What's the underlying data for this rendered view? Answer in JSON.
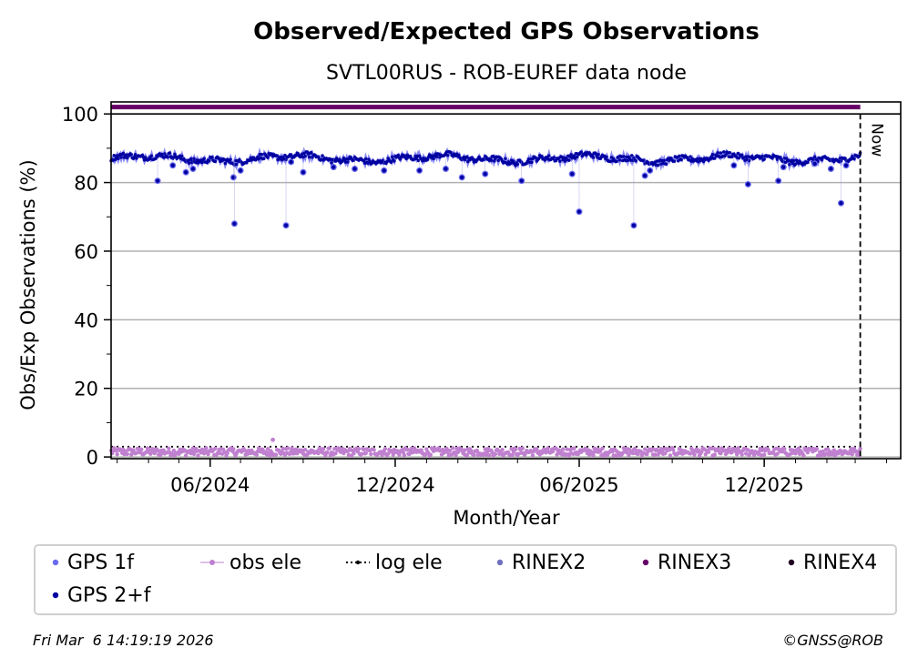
{
  "chart_data": {
    "type": "scatter",
    "title": "Observed/Expected GPS Observations",
    "subtitle": "SVTL00RUS - ROB-EUREF data node",
    "xlabel": "Month/Year",
    "ylabel": "Obs/Exp Observations (%)",
    "xlim": [
      "2024-02-24",
      "2026-04-15"
    ],
    "ylim": [
      -0.5,
      103.5
    ],
    "x_ticks": [
      {
        "date": "2024-06-01",
        "label": "06/2024"
      },
      {
        "date": "2024-12-01",
        "label": "12/2024"
      },
      {
        "date": "2025-06-01",
        "label": "06/2025"
      },
      {
        "date": "2025-12-01",
        "label": "12/2025"
      }
    ],
    "y_ticks": [
      0,
      20,
      40,
      60,
      80,
      100
    ],
    "grid": "horizontal",
    "now_label": "Now",
    "now_date": "2026-03-06",
    "series": [
      {
        "name": "GPS 1f",
        "color": "#6b6bf0"
      },
      {
        "name": "GPS 2+f",
        "color": "#0000a0",
        "start": "2024-02-24",
        "end": "2026-03-06",
        "typical_value": 87,
        "outliers": [
          {
            "date": "2024-04-10",
            "value": 80.5
          },
          {
            "date": "2024-04-25",
            "value": 85
          },
          {
            "date": "2024-05-08",
            "value": 83
          },
          {
            "date": "2024-05-15",
            "value": 84
          },
          {
            "date": "2024-06-24",
            "value": 81.5
          },
          {
            "date": "2024-06-25",
            "value": 68
          },
          {
            "date": "2024-07-01",
            "value": 83.5
          },
          {
            "date": "2024-08-15",
            "value": 67.5
          },
          {
            "date": "2024-08-20",
            "value": 86
          },
          {
            "date": "2024-09-01",
            "value": 83
          },
          {
            "date": "2024-10-01",
            "value": 84.5
          },
          {
            "date": "2024-10-22",
            "value": 84
          },
          {
            "date": "2024-11-20",
            "value": 83.5
          },
          {
            "date": "2024-12-25",
            "value": 83.5
          },
          {
            "date": "2025-01-20",
            "value": 84
          },
          {
            "date": "2025-02-05",
            "value": 81.5
          },
          {
            "date": "2025-02-28",
            "value": 82.5
          },
          {
            "date": "2025-04-05",
            "value": 80.5
          },
          {
            "date": "2025-05-25",
            "value": 82.5
          },
          {
            "date": "2025-06-01",
            "value": 71.5
          },
          {
            "date": "2025-07-25",
            "value": 67.5
          },
          {
            "date": "2025-08-05",
            "value": 82
          },
          {
            "date": "2025-08-10",
            "value": 83.5
          },
          {
            "date": "2025-11-01",
            "value": 85
          },
          {
            "date": "2025-11-15",
            "value": 79.5
          },
          {
            "date": "2025-12-15",
            "value": 80.5
          },
          {
            "date": "2025-12-20",
            "value": 84.5
          },
          {
            "date": "2026-01-20",
            "value": 85.5
          },
          {
            "date": "2026-02-05",
            "value": 84
          },
          {
            "date": "2026-02-15",
            "value": 74
          },
          {
            "date": "2026-02-20",
            "value": 85
          }
        ]
      },
      {
        "name": "obs ele",
        "color": "#c080d0",
        "typical_value": 1.5,
        "spike": {
          "date": "2024-08-02",
          "value": 5
        }
      },
      {
        "name": "log ele",
        "color": "#000000",
        "value": 3
      },
      {
        "name": "RINEX2",
        "color": "#7070c0"
      },
      {
        "name": "RINEX3",
        "color": "#660066",
        "value": 102
      },
      {
        "name": "RINEX4",
        "color": "#200020"
      }
    ]
  },
  "legend": [
    {
      "label": "GPS 1f",
      "marker": "dot",
      "color": "#6b6bf0"
    },
    {
      "label": "obs ele",
      "marker": "line-dot",
      "color": "#c080d0"
    },
    {
      "label": "log ele",
      "marker": "dotted-line",
      "color": "#000000"
    },
    {
      "label": "RINEX2",
      "marker": "dot",
      "color": "#7070c0"
    },
    {
      "label": "RINEX3",
      "marker": "dot",
      "color": "#660066"
    },
    {
      "label": "RINEX4",
      "marker": "dot",
      "color": "#200020"
    },
    {
      "label": "GPS 2+f",
      "marker": "dot",
      "color": "#0000a0"
    }
  ],
  "footer": {
    "timestamp": "Fri Mar  6 14:19:19 2026",
    "copyright": "©GNSS@ROB"
  }
}
